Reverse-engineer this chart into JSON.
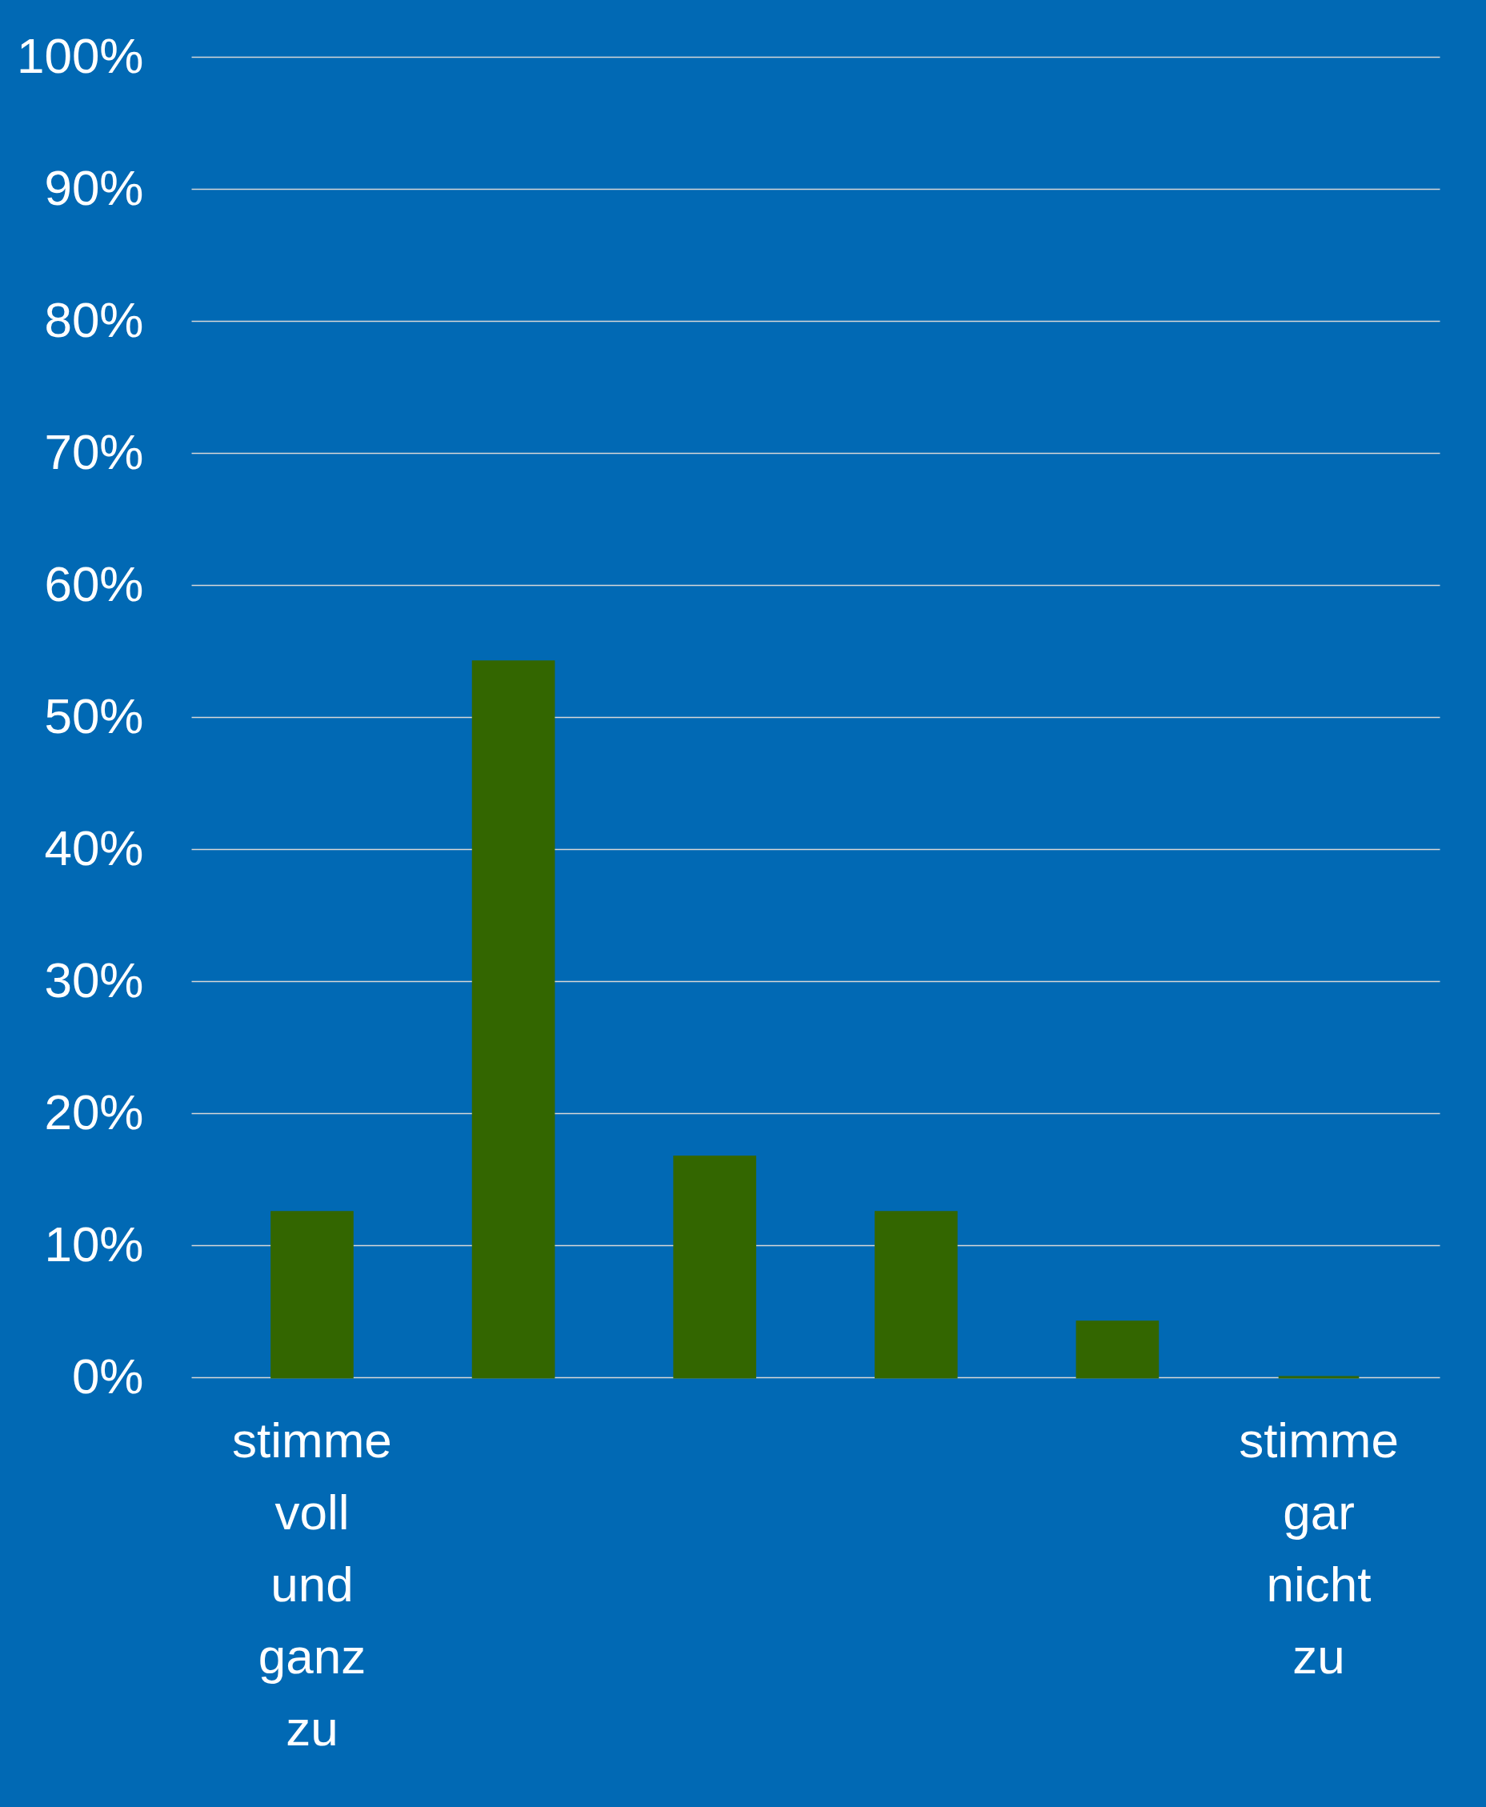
{
  "chart_data": {
    "type": "bar",
    "categories": [
      "stimme voll und ganz zu",
      null,
      null,
      null,
      null,
      "stimme gar nicht zu"
    ],
    "values": [
      12.5,
      54.2,
      16.7,
      12.5,
      4.2,
      0
    ],
    "color": "#336600",
    "ylim": [
      0,
      100
    ],
    "yticks": [
      {
        "value": 0,
        "label": "0%"
      },
      {
        "value": 10,
        "label": "10%"
      },
      {
        "value": 20,
        "label": "20%"
      },
      {
        "value": 30,
        "label": "30%"
      },
      {
        "value": 40,
        "label": "40%"
      },
      {
        "value": 50,
        "label": "50%"
      },
      {
        "value": 60,
        "label": "60%"
      },
      {
        "value": 70,
        "label": "70%"
      },
      {
        "value": 80,
        "label": "80%"
      },
      {
        "value": 90,
        "label": "90%"
      },
      {
        "value": 100,
        "label": "100%"
      }
    ],
    "grid": "y"
  }
}
